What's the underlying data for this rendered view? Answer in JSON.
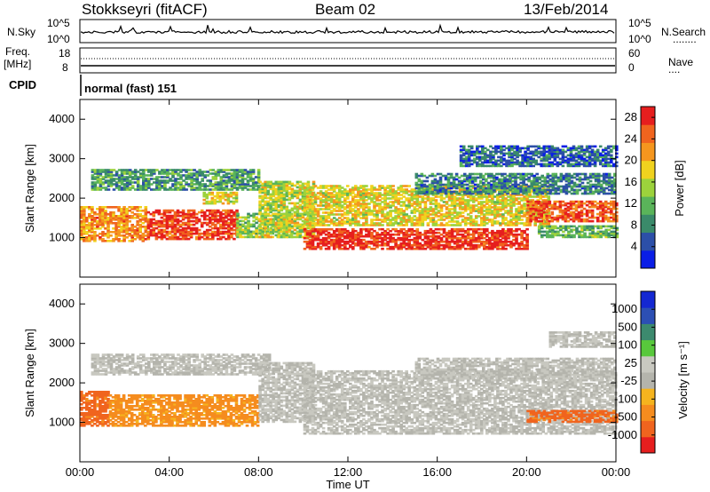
{
  "header": {
    "station": "Stokkseyri (fitACF)",
    "beam": "Beam 02",
    "date": "13/Feb/2014"
  },
  "side_labels": {
    "nsky": "N.Sky",
    "freq": "Freq.",
    "freq_unit": "[MHz]",
    "cpid": "CPID",
    "nsearch": "N.Search",
    "nave": "Nave",
    "nsearch_key": "........",
    "nave_key": "...."
  },
  "cpid_text": "normal (fast) 151",
  "noise_ticks": {
    "left_top": "10^5",
    "left_bottom": "10^0",
    "right_top": "10^5",
    "right_bottom": "10^0"
  },
  "freq_ticks": {
    "left_top": "18",
    "left_bottom": "8",
    "right_top": "60",
    "right_bottom": "0"
  },
  "colors": {
    "power": [
      "#0a1ee6",
      "#2c4fa8",
      "#3a8a6a",
      "#5ab45a",
      "#9cd23c",
      "#f0d21e",
      "#f5961e",
      "#f0641e",
      "#e61e1e"
    ],
    "velocity": [
      "#e61e1e",
      "#f0641e",
      "#f58c1e",
      "#f5b41e",
      "#b4b4ac",
      "#c8c8c0",
      "#58c83c",
      "#3c8a6e",
      "#2c4fb4",
      "#1428d2"
    ]
  },
  "chart_data": [
    {
      "type": "heatmap",
      "title": "Power",
      "xlabel": "",
      "ylabel": "Slant Range [km]",
      "x_ticks": [
        "00:00",
        "04:00",
        "08:00",
        "12:00",
        "16:00",
        "20:00",
        "00:00"
      ],
      "y_ticks": [
        "1000",
        "2000",
        "3000",
        "4000"
      ],
      "ylim": [
        0,
        4500
      ],
      "xlim_hours": [
        0,
        24
      ],
      "colorbar_label": "Power [dB]",
      "colorbar_ticks": [
        "4",
        "8",
        "12",
        "16",
        "20",
        "24",
        "28"
      ],
      "colorbar_range": [
        0,
        30
      ],
      "bands": [
        {
          "t0": 0.0,
          "t1": 3.0,
          "r0": 900,
          "r1": 1800,
          "v": 22
        },
        {
          "t0": 3.0,
          "t1": 7.0,
          "r0": 950,
          "r1": 1700,
          "v": 27
        },
        {
          "t0": 7.0,
          "t1": 9.5,
          "r0": 1000,
          "r1": 1600,
          "v": 14
        },
        {
          "t0": 0.5,
          "t1": 8.0,
          "r0": 2200,
          "r1": 2700,
          "v": 10
        },
        {
          "t0": 5.5,
          "t1": 7.0,
          "r0": 1850,
          "r1": 2150,
          "v": 18
        },
        {
          "t0": 8.0,
          "t1": 10.5,
          "r0": 1000,
          "r1": 2400,
          "v": 16
        },
        {
          "t0": 10.0,
          "t1": 20.0,
          "r0": 700,
          "r1": 1200,
          "v": 28
        },
        {
          "t0": 10.0,
          "t1": 21.0,
          "r0": 1300,
          "r1": 2300,
          "v": 18
        },
        {
          "t0": 20.0,
          "t1": 24.0,
          "r0": 1400,
          "r1": 1900,
          "v": 26
        },
        {
          "t0": 15.0,
          "t1": 24.0,
          "r0": 2100,
          "r1": 2600,
          "v": 8
        },
        {
          "t0": 17.0,
          "t1": 24.0,
          "r0": 2800,
          "r1": 3300,
          "v": 6
        },
        {
          "t0": 20.5,
          "t1": 24.0,
          "r0": 1000,
          "r1": 1300,
          "v": 12
        }
      ]
    },
    {
      "type": "heatmap",
      "title": "Velocity",
      "xlabel": "Time UT",
      "ylabel": "Slant Range [km]",
      "x_ticks": [
        "00:00",
        "04:00",
        "08:00",
        "12:00",
        "16:00",
        "20:00",
        "00:00"
      ],
      "y_ticks": [
        "1000",
        "2000",
        "3000",
        "4000"
      ],
      "ylim": [
        0,
        4500
      ],
      "xlim_hours": [
        0,
        24
      ],
      "colorbar_label": "Velocity [m s⁻¹]",
      "colorbar_ticks": [
        "1000",
        "500",
        "100",
        "25",
        "-25",
        "-100",
        "-500",
        "-1000"
      ],
      "bands": [
        {
          "t0": 0.0,
          "t1": 1.3,
          "r0": 900,
          "r1": 1800,
          "v": -400
        },
        {
          "t0": 1.3,
          "t1": 8.0,
          "r0": 900,
          "r1": 1700,
          "v": -150
        },
        {
          "t0": 0.5,
          "t1": 8.5,
          "r0": 2200,
          "r1": 2700,
          "v": 0
        },
        {
          "t0": 8.0,
          "t1": 10.5,
          "r0": 1000,
          "r1": 2500,
          "v": 0
        },
        {
          "t0": 10.0,
          "t1": 24.0,
          "r0": 700,
          "r1": 2300,
          "v": 0
        },
        {
          "t0": 15.0,
          "t1": 24.0,
          "r0": 2100,
          "r1": 2600,
          "v": 0
        },
        {
          "t0": 21.0,
          "t1": 24.0,
          "r0": 2900,
          "r1": 3300,
          "v": 0
        },
        {
          "t0": 20.0,
          "t1": 24.0,
          "r0": 1000,
          "r1": 1300,
          "v": -400
        }
      ]
    }
  ]
}
